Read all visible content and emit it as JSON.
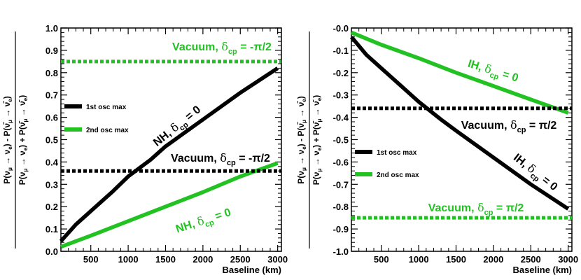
{
  "chart_data": [
    {
      "type": "line",
      "xlabel": "Baseline (km)",
      "ylabel": {
        "numerator": "P(ν_μ → ν_e) - P(ν̄_μ → ν̄_e)",
        "denominator": "P(ν_μ → ν_e) + P(ν̄_μ → ν̄_e)"
      },
      "xlim": [
        100,
        3050
      ],
      "ylim": [
        0.0,
        1.0
      ],
      "xticks": [
        "500",
        "1000",
        "1500",
        "2000",
        "2500",
        "3000"
      ],
      "yticks": [
        "0.0",
        "0.1",
        "0.2",
        "0.3",
        "0.4",
        "0.5",
        "0.6",
        "0.7",
        "0.8",
        "0.9",
        "1.0"
      ],
      "colors": {
        "black": "#000000",
        "green": "#22c222"
      },
      "series": [
        {
          "name": "NH, δcp = 0 (1st osc max)",
          "color": "black",
          "style": "solid",
          "x": [
            100,
            300,
            500,
            800,
            1000,
            1300,
            1500,
            2000,
            2500,
            3000
          ],
          "y": [
            0.045,
            0.12,
            0.18,
            0.27,
            0.335,
            0.41,
            0.47,
            0.59,
            0.71,
            0.82
          ]
        },
        {
          "name": "NH, δcp = 0 (2nd osc max)",
          "color": "green",
          "style": "solid",
          "x": [
            100,
            500,
            1000,
            1500,
            2000,
            2500,
            3000
          ],
          "y": [
            0.02,
            0.07,
            0.135,
            0.2,
            0.265,
            0.335,
            0.395
          ]
        },
        {
          "name": "Vacuum, δcp = -π/2",
          "color": "green",
          "style": "dashed",
          "x": [
            100,
            3050
          ],
          "y": [
            0.85,
            0.85
          ]
        },
        {
          "name": "Vacuum, δcp = -π/2 (lower)",
          "color": "black",
          "style": "dashed",
          "x": [
            100,
            3050
          ],
          "y": [
            0.36,
            0.36
          ]
        }
      ],
      "annotations": [
        {
          "id": "vac-green",
          "main": "Vacuum, ",
          "delta": "δ",
          "sub": "cp",
          "tail": " = -π/2",
          "color": "green"
        },
        {
          "id": "nh-black",
          "main": "NH, ",
          "delta": "δ",
          "sub": "cp",
          "tail": " = 0",
          "color": "black"
        },
        {
          "id": "vac-black",
          "main": "Vacuum, ",
          "delta": "δ",
          "sub": "cp",
          "tail": " = -π/2",
          "color": "black"
        },
        {
          "id": "nh-green",
          "main": "NH, ",
          "delta": "δ",
          "sub": "cp",
          "tail": " = 0",
          "color": "green"
        }
      ],
      "legend": [
        {
          "label": "1st osc max",
          "color": "black"
        },
        {
          "label": "2nd osc max",
          "color": "green"
        }
      ]
    },
    {
      "type": "line",
      "xlabel": "Baseline (km)",
      "ylabel": {
        "numerator": "P(ν_μ → ν_e) - P(ν̄_μ → ν̄_e)",
        "denominator": "P(ν_μ → ν_e) + P(ν̄_μ → ν̄_e)"
      },
      "xlim": [
        100,
        3050
      ],
      "ylim": [
        -1.0,
        0.0
      ],
      "xticks": [
        "500",
        "1000",
        "1500",
        "2000",
        "2500",
        "3000"
      ],
      "yticks": [
        "-0.0",
        "-0.1",
        "-0.2",
        "-0.3",
        "-0.4",
        "-0.5",
        "-0.6",
        "-0.7",
        "-0.8",
        "-0.9",
        "-1.0"
      ],
      "colors": {
        "black": "#000000",
        "green": "#22c222"
      },
      "series": [
        {
          "name": "IH, δcp = 0 (1st osc max)",
          "color": "black",
          "style": "solid",
          "x": [
            100,
            300,
            500,
            800,
            1000,
            1300,
            1500,
            2000,
            2500,
            3000
          ],
          "y": [
            -0.04,
            -0.12,
            -0.18,
            -0.27,
            -0.33,
            -0.41,
            -0.46,
            -0.58,
            -0.7,
            -0.81
          ]
        },
        {
          "name": "IH, δcp = 0 (2nd osc max)",
          "color": "green",
          "style": "solid",
          "x": [
            100,
            500,
            1000,
            1500,
            2000,
            2500,
            3000
          ],
          "y": [
            -0.02,
            -0.075,
            -0.135,
            -0.2,
            -0.26,
            -0.32,
            -0.38
          ]
        },
        {
          "name": "Vacuum, δcp = π/2",
          "color": "black",
          "style": "dashed",
          "x": [
            100,
            3050
          ],
          "y": [
            -0.36,
            -0.36
          ]
        },
        {
          "name": "Vacuum, δcp = π/2 (lower)",
          "color": "green",
          "style": "dashed",
          "x": [
            100,
            3050
          ],
          "y": [
            -0.85,
            -0.85
          ]
        }
      ],
      "annotations": [
        {
          "id": "ih-green",
          "main": "IH, ",
          "delta": "δ",
          "sub": "cp",
          "tail": " = 0",
          "color": "green"
        },
        {
          "id": "vac-black-r",
          "main": "Vacuum, ",
          "delta": "δ",
          "sub": "cp",
          "tail": " = π/2",
          "color": "black"
        },
        {
          "id": "ih-black",
          "main": "IH, ",
          "delta": "δ",
          "sub": "cp",
          "tail": " = 0",
          "color": "black"
        },
        {
          "id": "vac-green-r",
          "main": "Vacuum, ",
          "delta": "δ",
          "sub": "cp",
          "tail": " = π/2",
          "color": "green"
        }
      ],
      "legend": [
        {
          "label": "1st osc max",
          "color": "black"
        },
        {
          "label": "2nd osc max",
          "color": "green"
        }
      ]
    }
  ]
}
